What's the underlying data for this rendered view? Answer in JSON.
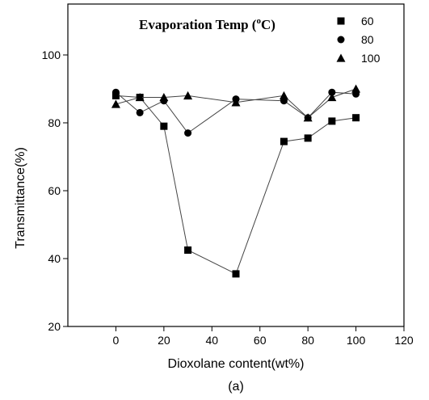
{
  "chart_data": {
    "type": "line",
    "xlabel": "Dioxolane content(wt%)",
    "ylabel": "Transmittance(%)",
    "caption": "(a)",
    "xlim": [
      -20,
      120
    ],
    "ylim": [
      20,
      115
    ],
    "xticks": [
      0,
      20,
      40,
      60,
      80,
      100,
      120
    ],
    "yticks": [
      20,
      40,
      60,
      80,
      100
    ],
    "grid": false,
    "legend": {
      "title_main": "Evaporation Temp (",
      "title_sup": "o",
      "title_tail": "C)",
      "placement": "top-right"
    },
    "series": [
      {
        "name": "60",
        "marker": "square",
        "x": [
          0,
          10,
          20,
          30,
          50,
          70,
          80,
          90,
          100
        ],
        "y": [
          88,
          87.5,
          79,
          42.5,
          35.5,
          74.5,
          75.5,
          80.5,
          81.5
        ]
      },
      {
        "name": "80",
        "marker": "circle",
        "x": [
          0,
          10,
          20,
          30,
          50,
          70,
          80,
          90,
          100
        ],
        "y": [
          89,
          83,
          86.5,
          77,
          87,
          86.5,
          81.5,
          89,
          88.5
        ]
      },
      {
        "name": "100",
        "marker": "triangle",
        "x": [
          0,
          10,
          20,
          30,
          50,
          70,
          80,
          90,
          100
        ],
        "y": [
          85.5,
          87.5,
          87.5,
          88,
          86,
          88,
          81.5,
          87.5,
          90
        ]
      }
    ]
  }
}
